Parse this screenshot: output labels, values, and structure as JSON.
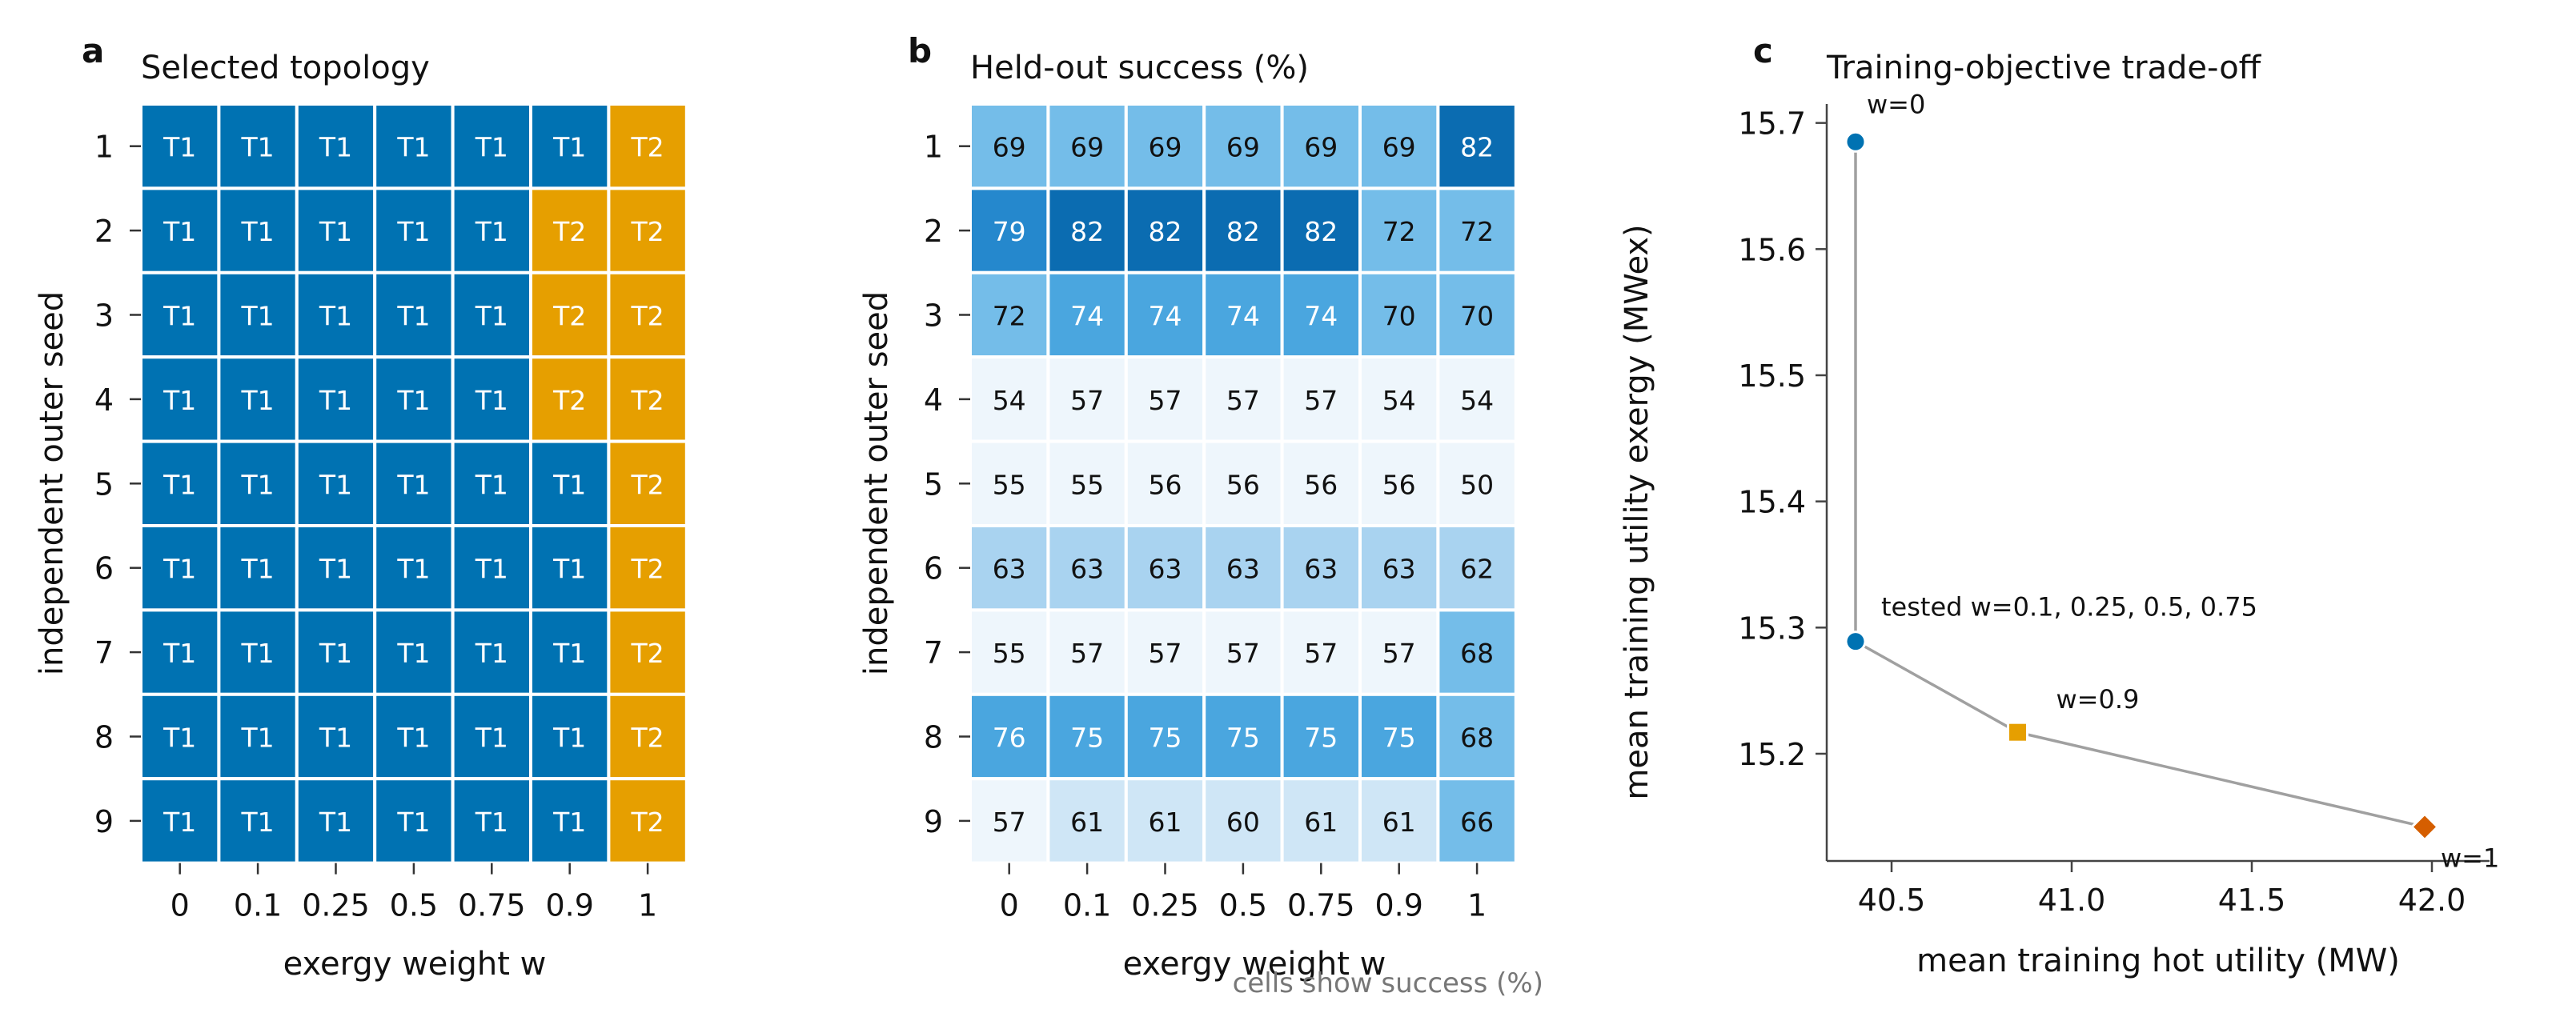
{
  "panels": [
    {
      "letter": "a",
      "title": "Selected topology"
    },
    {
      "letter": "b",
      "title": "Held-out success (%)"
    },
    {
      "letter": "c",
      "title": "Training-objective trade-off"
    }
  ],
  "colors": {
    "T1": "#0072b2",
    "T2": "#e69f00",
    "cell_text": "#ffffff",
    "success_scale": [
      "#eef6fc",
      "#cfe6f6",
      "#a9d3f0",
      "#74bde9",
      "#4aa6df",
      "#2588cd",
      "#0b6cb1"
    ],
    "line": "#a0a0a0",
    "w0": "#0072b2",
    "mid": "#0072b2",
    "w09": "#e69f00",
    "w1": "#d55e00",
    "footnote": "#777777"
  },
  "chart_data": [
    {
      "id": "a",
      "type": "heatmap",
      "title": "Selected topology",
      "xlabel": "exergy weight w",
      "ylabel": "independent outer seed",
      "x_ticks": [
        "0",
        "0.1",
        "0.25",
        "0.5",
        "0.75",
        "0.9",
        "1"
      ],
      "y_ticks": [
        "1",
        "2",
        "3",
        "4",
        "5",
        "6",
        "7",
        "8",
        "9"
      ],
      "cells": [
        [
          "T1",
          "T1",
          "T1",
          "T1",
          "T1",
          "T1",
          "T2"
        ],
        [
          "T1",
          "T1",
          "T1",
          "T1",
          "T1",
          "T2",
          "T2"
        ],
        [
          "T1",
          "T1",
          "T1",
          "T1",
          "T1",
          "T2",
          "T2"
        ],
        [
          "T1",
          "T1",
          "T1",
          "T1",
          "T1",
          "T2",
          "T2"
        ],
        [
          "T1",
          "T1",
          "T1",
          "T1",
          "T1",
          "T1",
          "T2"
        ],
        [
          "T1",
          "T1",
          "T1",
          "T1",
          "T1",
          "T1",
          "T2"
        ],
        [
          "T1",
          "T1",
          "T1",
          "T1",
          "T1",
          "T1",
          "T2"
        ],
        [
          "T1",
          "T1",
          "T1",
          "T1",
          "T1",
          "T1",
          "T2"
        ],
        [
          "T1",
          "T1",
          "T1",
          "T1",
          "T1",
          "T1",
          "T2"
        ]
      ]
    },
    {
      "id": "b",
      "type": "heatmap",
      "title": "Held-out success (%)",
      "xlabel": "exergy weight w",
      "ylabel": "independent outer seed",
      "x_ticks": [
        "0",
        "0.1",
        "0.25",
        "0.5",
        "0.75",
        "0.9",
        "1"
      ],
      "y_ticks": [
        "1",
        "2",
        "3",
        "4",
        "5",
        "6",
        "7",
        "8",
        "9"
      ],
      "values": [
        [
          69,
          69,
          69,
          69,
          69,
          69,
          82
        ],
        [
          79,
          82,
          82,
          82,
          82,
          72,
          72
        ],
        [
          72,
          74,
          74,
          74,
          74,
          70,
          70
        ],
        [
          54,
          57,
          57,
          57,
          57,
          54,
          54
        ],
        [
          55,
          55,
          56,
          56,
          56,
          56,
          50
        ],
        [
          63,
          63,
          63,
          63,
          63,
          63,
          62
        ],
        [
          55,
          57,
          57,
          57,
          57,
          57,
          68
        ],
        [
          76,
          75,
          75,
          75,
          75,
          75,
          68
        ],
        [
          57,
          61,
          61,
          60,
          61,
          61,
          66
        ]
      ],
      "footnote": "cells show success (%)"
    },
    {
      "id": "c",
      "type": "scatter",
      "title": "Training-objective trade-off",
      "xlabel": "mean training hot utility (MW)",
      "ylabel": "mean training utility exergy (MWex)",
      "xlim": [
        40.32,
        42.16
      ],
      "ylim": [
        15.115,
        15.715
      ],
      "x_ticks": [
        40.5,
        41.0,
        41.5,
        42.0
      ],
      "x_tick_labels": [
        "40.5",
        "41.0",
        "41.5",
        "42.0"
      ],
      "y_ticks": [
        15.2,
        15.3,
        15.4,
        15.5,
        15.6,
        15.7
      ],
      "y_tick_labels": [
        "15.2",
        "15.3",
        "15.4",
        "15.5",
        "15.6",
        "15.7"
      ],
      "points": [
        {
          "label": "w=0",
          "x": 40.4,
          "y": 15.685,
          "marker": "circle",
          "color": "#0072b2"
        },
        {
          "label": "tested w=0.1, 0.25, 0.5, 0.75",
          "x": 40.4,
          "y": 15.289,
          "marker": "circle",
          "color": "#0072b2"
        },
        {
          "label": "w=0.9",
          "x": 40.85,
          "y": 15.217,
          "marker": "square",
          "color": "#e69f00"
        },
        {
          "label": "w=1",
          "x": 41.98,
          "y": 15.142,
          "marker": "diamond",
          "color": "#d55e00"
        }
      ]
    }
  ]
}
